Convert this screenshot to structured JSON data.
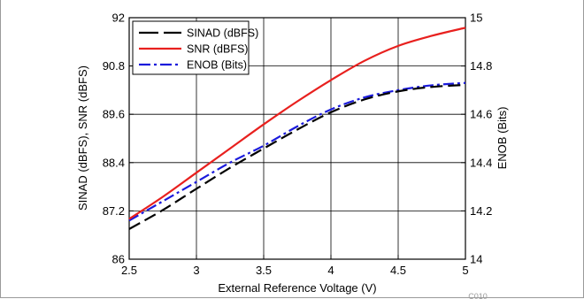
{
  "chart_data": {
    "type": "line",
    "xlabel": "External Reference Voltage (V)",
    "ylabel": "SINAD (dBFS), SNR (dBFS)",
    "y2label": "ENOB (Bits)",
    "xlim": [
      2.5,
      5
    ],
    "ylim": [
      86,
      92
    ],
    "y2lim": [
      14,
      15
    ],
    "x_ticks": [
      "2.5",
      "3",
      "3.5",
      "4",
      "4.5",
      "5"
    ],
    "y_ticks": [
      "86",
      "87.2",
      "88.4",
      "89.6",
      "90.8",
      "92"
    ],
    "y2_ticks": [
      "14",
      "14.2",
      "14.4",
      "14.6",
      "14.8",
      "15"
    ],
    "grid": true,
    "legend_position": "top-left",
    "figure_code": "C010",
    "series": [
      {
        "name": "SINAD (dBFS)",
        "axis": "left",
        "color": "#000000",
        "dash": "long-dash",
        "x": [
          2.5,
          2.75,
          3.0,
          3.25,
          3.5,
          3.75,
          4.0,
          4.25,
          4.5,
          4.75,
          5.0
        ],
        "y": [
          86.75,
          87.22,
          87.75,
          88.27,
          88.75,
          89.22,
          89.65,
          89.97,
          90.17,
          90.28,
          90.33
        ]
      },
      {
        "name": "SNR (dBFS)",
        "axis": "left",
        "color": "#e8201e",
        "dash": "solid",
        "x": [
          2.5,
          2.75,
          3.0,
          3.25,
          3.5,
          3.75,
          4.0,
          4.25,
          4.5,
          4.75,
          5.0
        ],
        "y": [
          87.0,
          87.55,
          88.15,
          88.75,
          89.35,
          89.92,
          90.45,
          90.93,
          91.3,
          91.55,
          91.75
        ]
      },
      {
        "name": "ENOB (Bits)",
        "axis": "right",
        "color": "#1a1adc",
        "dash": "dash-dot",
        "x": [
          2.5,
          2.75,
          3.0,
          3.25,
          3.5,
          3.75,
          4.0,
          4.25,
          4.5,
          4.75,
          5.0
        ],
        "y": [
          14.16,
          14.24,
          14.32,
          14.4,
          14.47,
          14.55,
          14.62,
          14.67,
          14.7,
          14.72,
          14.73
        ]
      }
    ]
  }
}
